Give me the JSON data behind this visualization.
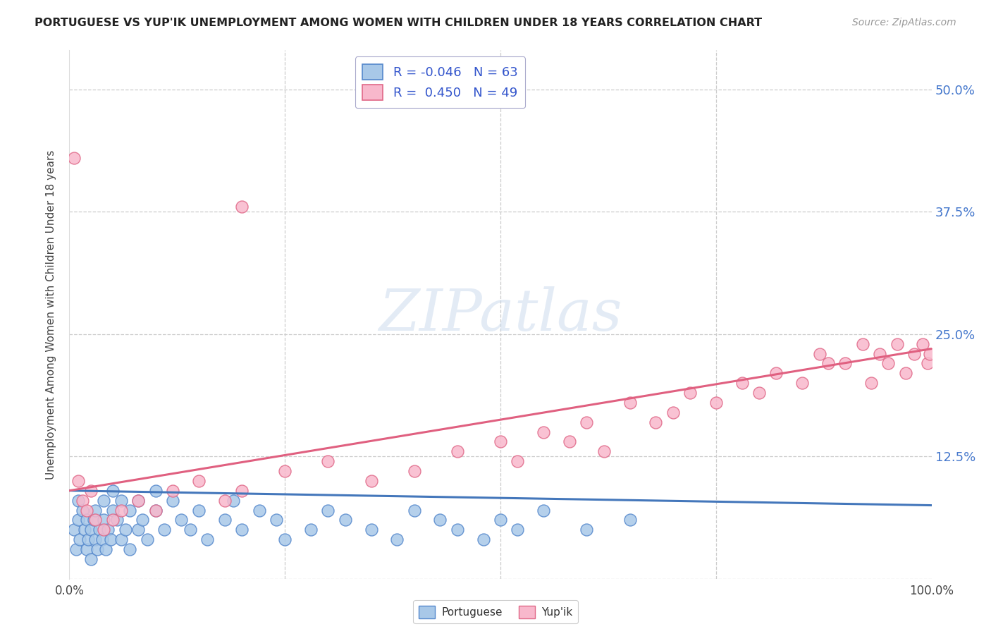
{
  "title": "PORTUGUESE VS YUP'IK UNEMPLOYMENT AMONG WOMEN WITH CHILDREN UNDER 18 YEARS CORRELATION CHART",
  "source": "Source: ZipAtlas.com",
  "ylabel": "Unemployment Among Women with Children Under 18 years",
  "background_color": "#ffffff",
  "watermark_text": "ZIPatlas",
  "port_face": "#a8c8e8",
  "port_edge": "#5588cc",
  "port_line": "#4477bb",
  "yupik_face": "#f8b8cc",
  "yupik_edge": "#e06888",
  "yupik_line": "#e06080",
  "legend_R_port": "-0.046",
  "legend_N_port": "63",
  "legend_R_yupik": "0.450",
  "legend_N_yupik": "49",
  "legend_text_color": "#3355cc",
  "ytick_vals": [
    0.0,
    0.125,
    0.25,
    0.375,
    0.5
  ],
  "ytick_labels": [
    "",
    "12.5%",
    "25.0%",
    "37.5%",
    "50.0%"
  ],
  "right_tick_color": "#4477cc",
  "xlim": [
    0.0,
    1.0
  ],
  "ylim": [
    0.0,
    0.54
  ],
  "port_x": [
    0.005,
    0.008,
    0.01,
    0.01,
    0.012,
    0.015,
    0.018,
    0.02,
    0.02,
    0.022,
    0.025,
    0.025,
    0.028,
    0.03,
    0.03,
    0.032,
    0.035,
    0.038,
    0.04,
    0.04,
    0.042,
    0.045,
    0.048,
    0.05,
    0.05,
    0.055,
    0.06,
    0.06,
    0.065,
    0.07,
    0.07,
    0.08,
    0.08,
    0.085,
    0.09,
    0.1,
    0.1,
    0.11,
    0.12,
    0.13,
    0.14,
    0.15,
    0.16,
    0.18,
    0.19,
    0.2,
    0.22,
    0.24,
    0.25,
    0.28,
    0.3,
    0.32,
    0.35,
    0.38,
    0.4,
    0.43,
    0.45,
    0.48,
    0.5,
    0.52,
    0.55,
    0.6,
    0.65
  ],
  "port_y": [
    0.05,
    0.03,
    0.06,
    0.08,
    0.04,
    0.07,
    0.05,
    0.03,
    0.06,
    0.04,
    0.02,
    0.05,
    0.06,
    0.04,
    0.07,
    0.03,
    0.05,
    0.04,
    0.06,
    0.08,
    0.03,
    0.05,
    0.04,
    0.07,
    0.09,
    0.06,
    0.04,
    0.08,
    0.05,
    0.03,
    0.07,
    0.05,
    0.08,
    0.06,
    0.04,
    0.07,
    0.09,
    0.05,
    0.08,
    0.06,
    0.05,
    0.07,
    0.04,
    0.06,
    0.08,
    0.05,
    0.07,
    0.06,
    0.04,
    0.05,
    0.07,
    0.06,
    0.05,
    0.04,
    0.07,
    0.06,
    0.05,
    0.04,
    0.06,
    0.05,
    0.07,
    0.05,
    0.06
  ],
  "yupik_x": [
    0.01,
    0.015,
    0.02,
    0.025,
    0.03,
    0.04,
    0.05,
    0.06,
    0.08,
    0.1,
    0.12,
    0.15,
    0.18,
    0.2,
    0.25,
    0.3,
    0.35,
    0.4,
    0.45,
    0.5,
    0.52,
    0.55,
    0.58,
    0.6,
    0.62,
    0.65,
    0.68,
    0.7,
    0.72,
    0.75,
    0.78,
    0.8,
    0.82,
    0.85,
    0.87,
    0.88,
    0.9,
    0.92,
    0.93,
    0.94,
    0.95,
    0.96,
    0.97,
    0.98,
    0.99,
    0.995,
    0.998,
    0.005,
    0.2
  ],
  "yupik_y": [
    0.1,
    0.08,
    0.07,
    0.09,
    0.06,
    0.05,
    0.06,
    0.07,
    0.08,
    0.07,
    0.09,
    0.1,
    0.08,
    0.09,
    0.11,
    0.12,
    0.1,
    0.11,
    0.13,
    0.14,
    0.12,
    0.15,
    0.14,
    0.16,
    0.13,
    0.18,
    0.16,
    0.17,
    0.19,
    0.18,
    0.2,
    0.19,
    0.21,
    0.2,
    0.23,
    0.22,
    0.22,
    0.24,
    0.2,
    0.23,
    0.22,
    0.24,
    0.21,
    0.23,
    0.24,
    0.22,
    0.23,
    0.43,
    0.38
  ],
  "port_line_x0": 0.0,
  "port_line_y0": 0.09,
  "port_line_x1": 1.0,
  "port_line_y1": 0.075,
  "yupik_line_x0": 0.0,
  "yupik_line_y0": 0.09,
  "yupik_line_x1": 1.0,
  "yupik_line_y1": 0.235
}
